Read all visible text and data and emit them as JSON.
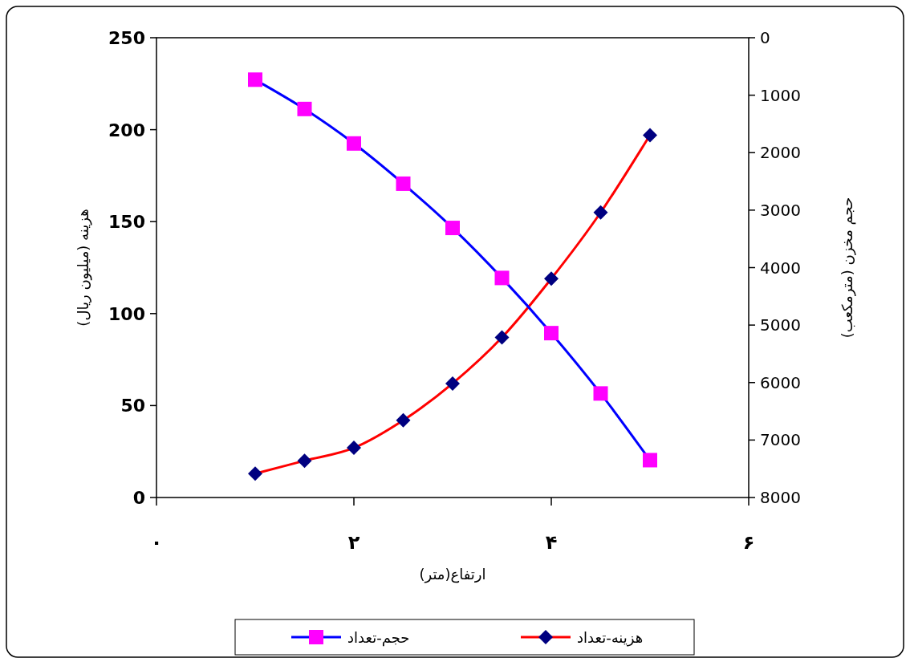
{
  "chart_data": {
    "type": "line",
    "xlabel": "ارتفاع(متر)",
    "ylabel": "هزینه (میلیون ریال)",
    "y2label": "حجم مخزن (مترمکعب)",
    "x": [
      1,
      1.5,
      2,
      2.5,
      3,
      3.5,
      4,
      4.5,
      5
    ],
    "xlim": [
      0,
      6
    ],
    "xticks": [
      {
        "value": 0,
        "label": "٠"
      },
      {
        "value": 2,
        "label": "۲"
      },
      {
        "value": 4,
        "label": "۴"
      },
      {
        "value": 6,
        "label": "۶"
      }
    ],
    "ylim": [
      0,
      250
    ],
    "yticks": [
      0,
      50,
      100,
      150,
      200,
      250
    ],
    "y2lim": [
      8000,
      0
    ],
    "y2ticks": [
      0,
      1000,
      2000,
      3000,
      4000,
      5000,
      6000,
      7000,
      8000
    ],
    "grid": false,
    "legend": "bottom",
    "line_style": "solid",
    "series": [
      {
        "name": "هزینه-تعداد",
        "color": "#ff0000",
        "marker": "diamond",
        "colors": [
          "#000080",
          "#000080",
          "#000080",
          "#000080",
          "#000080",
          "#000080",
          "#000080",
          "#000080",
          "#000080"
        ],
        "values": [
          13,
          20,
          27,
          42,
          62,
          87,
          119,
          155,
          197
        ]
      },
      {
        "name": "حجم-تعداد",
        "color": "#0000ff",
        "marker": "square",
        "axis": "y2",
        "colors": [
          "#ff00ff",
          "#ff00ff",
          "#ff00ff",
          "#ff00ff",
          "#ff00ff",
          "#ff00ff",
          "#ff00ff",
          "#ff00ff",
          "#ff00ff"
        ],
        "values": [
          730,
          1240,
          1840,
          2540,
          3310,
          4180,
          5140,
          6190,
          7350
        ]
      }
    ]
  }
}
